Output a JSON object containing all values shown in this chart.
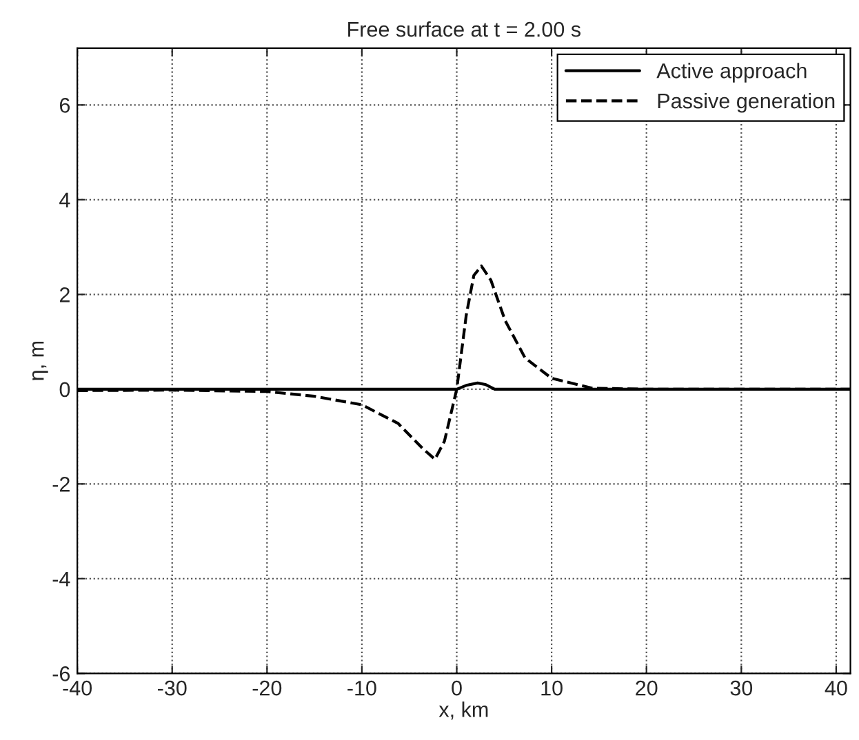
{
  "chart_data": {
    "type": "line",
    "title": "Free surface at t = 2.00 s",
    "xlabel": "x, km",
    "ylabel": "η, m",
    "xlim": [
      -40,
      41.5
    ],
    "xticks": [
      -40,
      -30,
      -20,
      -10,
      0,
      10,
      20,
      30,
      40
    ],
    "ylim": [
      -6,
      7.2
    ],
    "yticks": [
      -6,
      -4,
      -2,
      0,
      2,
      4,
      6
    ],
    "grid": true,
    "legend": "top right",
    "marker": "none",
    "series": [
      {
        "name": "Active approach",
        "color": "#000000",
        "line_style": "solid",
        "x": [
          -40,
          -20,
          -5,
          -1,
          0,
          1,
          2.2,
          3,
          4,
          10,
          20,
          41.5
        ],
        "values": [
          0,
          0,
          0,
          0,
          0,
          0.08,
          0.13,
          0.1,
          0,
          0,
          0,
          0
        ]
      },
      {
        "name": "Passive generation",
        "color": "#000000",
        "line_style": "dashed",
        "x": [
          -40,
          -30,
          -20,
          -15,
          -10,
          -6.2,
          -3.6,
          -2.3,
          -1.3,
          0,
          1,
          1.8,
          2.6,
          3.6,
          5.1,
          7.2,
          10,
          14.3,
          20,
          41.5
        ],
        "values": [
          -0.03,
          -0.02,
          -0.05,
          -0.15,
          -0.33,
          -0.72,
          -1.25,
          -1.48,
          -1.1,
          0,
          1.56,
          2.4,
          2.6,
          2.3,
          1.45,
          0.66,
          0.23,
          0.02,
          0,
          0
        ]
      }
    ]
  }
}
